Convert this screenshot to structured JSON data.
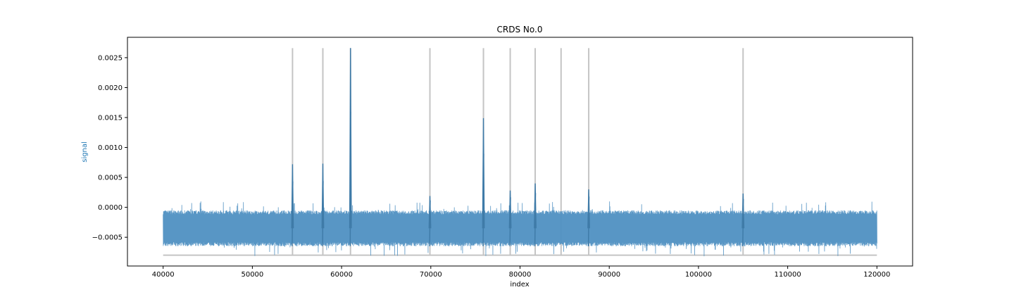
{
  "chart_data": {
    "type": "line",
    "title": "CRDS No.0",
    "xlabel": "index",
    "ylabel": "signal",
    "xlim": [
      36000,
      124000
    ],
    "ylim": [
      -0.00098,
      0.00284
    ],
    "x_ticks": [
      40000,
      50000,
      60000,
      70000,
      80000,
      90000,
      100000,
      110000,
      120000
    ],
    "x_tick_labels": [
      "40000",
      "50000",
      "60000",
      "70000",
      "80000",
      "90000",
      "100000",
      "110000",
      "120000"
    ],
    "y_ticks": [
      -0.0005,
      0.0,
      0.0005,
      0.001,
      0.0015,
      0.002,
      0.0025
    ],
    "y_tick_labels": [
      "−0.0005",
      "0.0000",
      "0.0005",
      "0.0010",
      "0.0015",
      "0.0020",
      "0.0025"
    ],
    "grid": false,
    "legend": "none",
    "series": [
      {
        "kind": "noise-band",
        "x_range": [
          40000,
          120000
        ],
        "typical_low": -0.00065,
        "typical_high": -5e-05,
        "min": -0.00082,
        "max": 0.0001,
        "peaks": [
          {
            "x": 54500,
            "y": 0.00072
          },
          {
            "x": 57900,
            "y": 0.00073
          },
          {
            "x": 61000,
            "y": 0.00266
          },
          {
            "x": 69900,
            "y": 0.00019
          },
          {
            "x": 75900,
            "y": 0.00149
          },
          {
            "x": 78900,
            "y": 0.00028
          },
          {
            "x": 81700,
            "y": 0.0004
          },
          {
            "x": 87700,
            "y": 0.0003
          },
          {
            "x": 105000,
            "y": 0.00023
          }
        ]
      },
      {
        "kind": "markers",
        "baseline": -0.0008,
        "top": 0.00266,
        "baseline_x_range": [
          40000,
          120000
        ],
        "x": [
          54500,
          57900,
          61000,
          69900,
          75900,
          78900,
          81700,
          84600,
          87700,
          105000
        ]
      }
    ],
    "colors": {
      "signal": "#4f90c2",
      "marker": "#c4c4c4",
      "ylabel": "#1f77b4",
      "axes": "#000000"
    }
  }
}
